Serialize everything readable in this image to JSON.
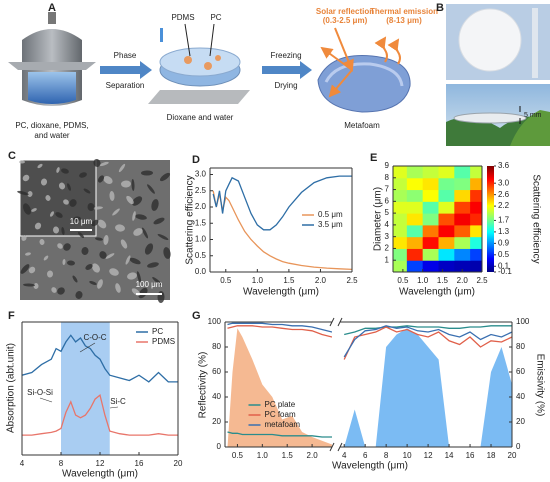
{
  "figure": {
    "A": {
      "label": "A",
      "step1": [
        "PC, dioxane, PDMS,",
        "and water"
      ],
      "arrow1": [
        "Phase",
        "Separation"
      ],
      "pdms": "PDMS",
      "pc": "PC",
      "step2": "Dioxane and water",
      "arrow2": [
        "Freezing",
        "Drying"
      ],
      "solar": [
        "Solar reflection",
        "(0.3-2.5 μm)"
      ],
      "thermal": [
        "Thermal emission",
        "(8-13 μm)"
      ],
      "step3": "Metafoam"
    },
    "B": {
      "label": "B",
      "scale": "5 mm"
    },
    "C": {
      "label": "C",
      "scale1": "10 μm",
      "scale2": "100 μm"
    }
  },
  "chart_data": [
    {
      "type": "line",
      "panel": "D",
      "xlabel": "Wavelength (μm)",
      "ylabel": "Scattering efficiency",
      "x": [
        0.3,
        0.35,
        0.4,
        0.45,
        0.5,
        0.55,
        0.6,
        0.7,
        0.8,
        0.9,
        1.0,
        1.1,
        1.2,
        1.3,
        1.4,
        1.5,
        1.7,
        1.9,
        2.1,
        2.3,
        2.5
      ],
      "xlim": [
        0.25,
        2.5
      ],
      "xticks": [
        0.5,
        {
          "value": 1,
          "label": "1.0"
        },
        1.5,
        {
          "value": 2,
          "label": "2.0"
        },
        2.5
      ],
      "ylim": [
        0,
        3.2
      ],
      "yticks": [
        {
          "value": 0,
          "label": "0.0"
        },
        0.5,
        {
          "value": 1,
          "label": "1.0"
        },
        1.5,
        {
          "value": 2,
          "label": "2.0"
        },
        2.5,
        {
          "value": 3,
          "label": "3.0"
        }
      ],
      "legend": "center right",
      "series": [
        {
          "name": "0.5 μm",
          "color": "#e8955a",
          "values": [
            2.5,
            2.0,
            2.4,
            1.9,
            2.3,
            2.2,
            2.0,
            1.6,
            1.25,
            1.0,
            0.8,
            0.62,
            0.5,
            0.4,
            0.32,
            0.27,
            0.2,
            0.15,
            0.12,
            0.1,
            0.08
          ]
        },
        {
          "name": "3.5 μm",
          "color": "#2e6ea6",
          "values": [
            2.4,
            2.0,
            2.5,
            1.8,
            2.5,
            2.7,
            2.9,
            2.8,
            2.3,
            1.8,
            1.45,
            1.3,
            1.3,
            1.45,
            1.7,
            2.0,
            2.45,
            2.75,
            2.9,
            2.95,
            2.95
          ]
        }
      ]
    },
    {
      "type": "heatmap",
      "panel": "E",
      "xlabel": "Wavelength (μm)",
      "ylabel": "Diameter (μm)",
      "colorbar_label": "Scattering efficiency",
      "x": [
        0.4,
        0.8,
        1.2,
        1.6,
        2.0,
        2.4
      ],
      "y": [
        0.5,
        1.5,
        2.5,
        3.5,
        4.5,
        5.5,
        6.5,
        7.5,
        8.5
      ],
      "z": [
        [
          1.9,
          0.6,
          0.28,
          0.15,
          0.1,
          0.07
        ],
        [
          1.75,
          3.0,
          1.9,
          1.2,
          0.85,
          0.6
        ],
        [
          2.3,
          2.5,
          3.1,
          2.5,
          1.9,
          1.4
        ],
        [
          2.0,
          1.6,
          2.7,
          3.15,
          2.8,
          2.3
        ],
        [
          2.0,
          2.3,
          1.75,
          2.85,
          3.17,
          3.0
        ],
        [
          2.1,
          2.1,
          1.6,
          2.1,
          2.9,
          3.15
        ],
        [
          1.9,
          1.8,
          2.2,
          1.6,
          2.35,
          2.95
        ],
        [
          2.0,
          2.2,
          2.3,
          1.7,
          1.75,
          2.5
        ],
        [
          2.1,
          1.9,
          2.0,
          2.1,
          1.6,
          2.0
        ]
      ],
      "xlim": [
        0.25,
        2.5
      ],
      "xticks": [
        0.5,
        {
          "value": 1,
          "label": "1.0"
        },
        1.5,
        {
          "value": 2,
          "label": "2.0"
        },
        2.5
      ],
      "ylim": [
        0,
        9
      ],
      "yticks": [
        1,
        2,
        3,
        4,
        5,
        6,
        7,
        8,
        9
      ],
      "zlim": [
        -0.1,
        3.6
      ],
      "zticks": [
        3.6,
        {
          "value": 3,
          "label": "3.0"
        },
        2.6,
        2.2,
        1.7,
        1.3,
        0.9,
        0.5,
        0.1,
        -0.1
      ],
      "colormap": "jet"
    },
    {
      "type": "line",
      "panel": "F",
      "xlabel": "Wavelength (μm)",
      "ylabel": "Absorption (abt.unit)",
      "x": [
        4,
        5,
        6,
        7,
        7.5,
        8,
        8.5,
        9,
        9.5,
        10,
        10.5,
        11,
        11.5,
        12,
        12.5,
        13,
        14,
        15,
        16,
        17,
        18,
        19,
        20
      ],
      "xlim": [
        4,
        20
      ],
      "xticks": [
        4,
        8,
        12,
        16,
        20
      ],
      "ylim": [
        0,
        1
      ],
      "band": [
        8,
        13
      ],
      "band_color": "#a9cdf2",
      "legend": "upper right",
      "annotations": [
        "C-O-C",
        "Si-O-Si",
        "Si-C"
      ],
      "series": [
        {
          "name": "PC",
          "color": "#2e6ea6",
          "values": [
            0.6,
            0.62,
            0.68,
            0.72,
            0.8,
            0.78,
            0.85,
            0.9,
            0.85,
            0.88,
            0.82,
            0.8,
            0.75,
            0.72,
            0.65,
            0.6,
            0.58,
            0.56,
            0.6,
            0.55,
            0.62,
            0.55,
            0.55
          ]
        },
        {
          "name": "PDMS",
          "color": "#e8756a",
          "values": [
            0.15,
            0.15,
            0.16,
            0.17,
            0.18,
            0.2,
            0.32,
            0.4,
            0.3,
            0.28,
            0.3,
            0.35,
            0.42,
            0.45,
            0.3,
            0.18,
            0.16,
            0.15,
            0.15,
            0.15,
            0.16,
            0.15,
            0.15
          ]
        }
      ]
    },
    {
      "type": "line",
      "panel": "G",
      "xlabel": "Wavelength (μm)",
      "ylabel": "Reflectivity (%)",
      "x": [
        0.3,
        0.4,
        0.5,
        0.6,
        0.8,
        1.0,
        1.2,
        1.4,
        1.6,
        1.8,
        2.0,
        2.2,
        2.4
      ],
      "xlim": [
        0.25,
        2.4
      ],
      "xticks": [
        0.5,
        {
          "value": 1,
          "label": "1.0"
        },
        1.5,
        {
          "value": 2,
          "label": "2.0"
        }
      ],
      "ylim": [
        0,
        100
      ],
      "yticks": [
        0,
        20,
        40,
        60,
        80,
        100
      ],
      "legend": "lower center",
      "series": [
        {
          "color": "#f2a877",
          "fill": true,
          "values": [
            0,
            60,
            95,
            88,
            70,
            50,
            40,
            22,
            25,
            12,
            8,
            5,
            2
          ]
        },
        {
          "name": "PC plate",
          "color": "#2a8c8c",
          "values": [
            12,
            11,
            11,
            10,
            10,
            10,
            10,
            9,
            9,
            9,
            9,
            8,
            8
          ]
        },
        {
          "name": "PC foam",
          "color": "#e0604a",
          "values": [
            95,
            96,
            97,
            97,
            97,
            96,
            96,
            95,
            94,
            94,
            93,
            90,
            88
          ]
        },
        {
          "name": "metafoam",
          "color": "#3a6fb0",
          "values": [
            98,
            99,
            99,
            99,
            99,
            99,
            98,
            98,
            97,
            97,
            96,
            94,
            92
          ]
        }
      ]
    },
    {
      "type": "line",
      "y2label": "Emissivity (%)",
      "x": [
        4,
        5,
        6,
        7,
        8,
        9,
        10,
        11,
        12,
        13,
        14,
        15,
        16,
        17,
        18,
        19,
        20
      ],
      "xlim": [
        3.6,
        20
      ],
      "xticks": [
        4,
        6,
        8,
        10,
        12,
        14,
        16,
        18,
        20
      ],
      "y2lim": [
        0,
        100
      ],
      "y2ticks": [
        0,
        20,
        40,
        60,
        80,
        100
      ],
      "series": [
        {
          "color": "#5aaaf0",
          "fill": true,
          "axis": "y2",
          "values": [
            0,
            30,
            0,
            0,
            80,
            90,
            95,
            90,
            80,
            70,
            0,
            0,
            0,
            0,
            60,
            80,
            50
          ]
        },
        {
          "color": "#2a8c8c",
          "axis": "y2",
          "values": [
            90,
            92,
            95,
            95,
            96,
            96,
            97,
            96,
            96,
            96,
            95,
            95,
            96,
            96,
            97,
            97,
            97
          ]
        },
        {
          "color": "#e0604a",
          "axis": "y2",
          "values": [
            70,
            88,
            90,
            92,
            96,
            92,
            94,
            90,
            88,
            92,
            85,
            82,
            88,
            80,
            85,
            84,
            88
          ]
        },
        {
          "color": "#3a6fb0",
          "axis": "y2",
          "values": [
            72,
            86,
            93,
            94,
            97,
            95,
            96,
            93,
            92,
            94,
            90,
            88,
            92,
            86,
            90,
            88,
            92
          ]
        }
      ]
    }
  ]
}
